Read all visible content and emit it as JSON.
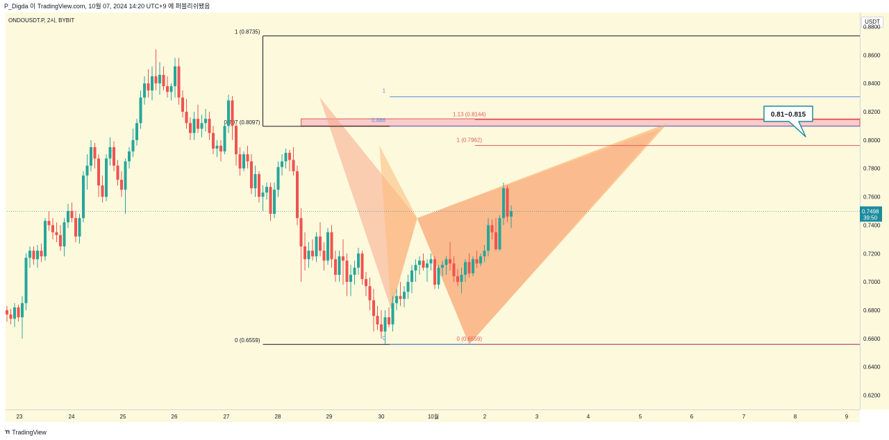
{
  "header": {
    "title": "P_Digda 이 TradingView.com, 10월 07, 2024 14:20 UTC+9 에 퍼블리쉬됐음"
  },
  "symbol": "ONDOUSDT.P, 2시, BYBIT",
  "currency": "USDT",
  "brand": "TradingView",
  "colors": {
    "up": "#26a69a",
    "down": "#ef5350",
    "patternA": "#f7a88a",
    "patternB": "#fdb97a",
    "fibBlack": "#131722",
    "fibBlue": "#5b8ee6",
    "fibRed": "#e35a5a",
    "zoneFill": "#f4a7b9",
    "target": "#1b8c9e",
    "bg": "#fdf9dd"
  },
  "chart_data": {
    "type": "candlestick",
    "ylim": [
      0.61,
      0.89
    ],
    "yticks": [
      "0.8800",
      "0.8600",
      "0.8400",
      "0.8200",
      "0.8000",
      "0.7800",
      "0.7600",
      "0.7400",
      "0.7200",
      "0.7000",
      "0.6800",
      "0.6600",
      "0.6400",
      "0.6200"
    ],
    "xticks": [
      "23",
      "24",
      "25",
      "26",
      "27",
      "28",
      "29",
      "30",
      "10월",
      "2",
      "3",
      "4",
      "5",
      "6",
      "7",
      "8",
      "9"
    ],
    "last_price": "0.7498",
    "last_countdown": "39:50",
    "last_value": 0.7498,
    "candles": [
      [
        0.68,
        0.683,
        0.672,
        0.677
      ],
      [
        0.677,
        0.681,
        0.67,
        0.674
      ],
      [
        0.674,
        0.685,
        0.668,
        0.682
      ],
      [
        0.682,
        0.684,
        0.672,
        0.675
      ],
      [
        0.675,
        0.69,
        0.66,
        0.685
      ],
      [
        0.685,
        0.72,
        0.68,
        0.717
      ],
      [
        0.717,
        0.725,
        0.71,
        0.722
      ],
      [
        0.722,
        0.725,
        0.712,
        0.716
      ],
      [
        0.716,
        0.726,
        0.71,
        0.722
      ],
      [
        0.722,
        0.727,
        0.714,
        0.718
      ],
      [
        0.718,
        0.745,
        0.715,
        0.743
      ],
      [
        0.743,
        0.75,
        0.736,
        0.74
      ],
      [
        0.74,
        0.745,
        0.73,
        0.735
      ],
      [
        0.735,
        0.742,
        0.728,
        0.733
      ],
      [
        0.733,
        0.74,
        0.722,
        0.725
      ],
      [
        0.725,
        0.745,
        0.718,
        0.742
      ],
      [
        0.742,
        0.755,
        0.738,
        0.75
      ],
      [
        0.75,
        0.756,
        0.742,
        0.745
      ],
      [
        0.745,
        0.75,
        0.728,
        0.732
      ],
      [
        0.732,
        0.748,
        0.727,
        0.745
      ],
      [
        0.745,
        0.778,
        0.742,
        0.775
      ],
      [
        0.775,
        0.79,
        0.765,
        0.782
      ],
      [
        0.782,
        0.8,
        0.778,
        0.795
      ],
      [
        0.795,
        0.798,
        0.78,
        0.787
      ],
      [
        0.787,
        0.79,
        0.76,
        0.768
      ],
      [
        0.768,
        0.775,
        0.756,
        0.76
      ],
      [
        0.76,
        0.79,
        0.757,
        0.787
      ],
      [
        0.787,
        0.802,
        0.782,
        0.795
      ],
      [
        0.795,
        0.799,
        0.778,
        0.782
      ],
      [
        0.782,
        0.786,
        0.768,
        0.772
      ],
      [
        0.772,
        0.778,
        0.76,
        0.765
      ],
      [
        0.765,
        0.787,
        0.748,
        0.785
      ],
      [
        0.785,
        0.795,
        0.78,
        0.792
      ],
      [
        0.792,
        0.808,
        0.788,
        0.8
      ],
      [
        0.8,
        0.815,
        0.796,
        0.812
      ],
      [
        0.812,
        0.835,
        0.808,
        0.83
      ],
      [
        0.83,
        0.845,
        0.825,
        0.84
      ],
      [
        0.84,
        0.85,
        0.83,
        0.835
      ],
      [
        0.835,
        0.852,
        0.828,
        0.845
      ],
      [
        0.845,
        0.864,
        0.835,
        0.84
      ],
      [
        0.84,
        0.855,
        0.832,
        0.846
      ],
      [
        0.846,
        0.852,
        0.835,
        0.838
      ],
      [
        0.838,
        0.845,
        0.83,
        0.834
      ],
      [
        0.834,
        0.84,
        0.828,
        0.838
      ],
      [
        0.838,
        0.858,
        0.83,
        0.852
      ],
      [
        0.852,
        0.858,
        0.825,
        0.83
      ],
      [
        0.83,
        0.835,
        0.816,
        0.82
      ],
      [
        0.82,
        0.829,
        0.808,
        0.812
      ],
      [
        0.812,
        0.816,
        0.8,
        0.805
      ],
      [
        0.805,
        0.82,
        0.8,
        0.815
      ],
      [
        0.815,
        0.825,
        0.805,
        0.808
      ],
      [
        0.808,
        0.818,
        0.802,
        0.812
      ],
      [
        0.812,
        0.822,
        0.806,
        0.815
      ],
      [
        0.815,
        0.82,
        0.8,
        0.805
      ],
      [
        0.805,
        0.81,
        0.79,
        0.794
      ],
      [
        0.794,
        0.8,
        0.788,
        0.796
      ],
      [
        0.796,
        0.8,
        0.785,
        0.792
      ],
      [
        0.792,
        0.812,
        0.79,
        0.81
      ],
      [
        0.81,
        0.832,
        0.805,
        0.828
      ],
      [
        0.828,
        0.831,
        0.8,
        0.81
      ],
      [
        0.81,
        0.812,
        0.782,
        0.79
      ],
      [
        0.79,
        0.795,
        0.775,
        0.78
      ],
      [
        0.78,
        0.792,
        0.778,
        0.79
      ],
      [
        0.79,
        0.796,
        0.78,
        0.785
      ],
      [
        0.785,
        0.79,
        0.762,
        0.766
      ],
      [
        0.766,
        0.782,
        0.76,
        0.776
      ],
      [
        0.776,
        0.778,
        0.756,
        0.76
      ],
      [
        0.76,
        0.768,
        0.75,
        0.763
      ],
      [
        0.763,
        0.77,
        0.758,
        0.767
      ],
      [
        0.767,
        0.77,
        0.743,
        0.748
      ],
      [
        0.748,
        0.77,
        0.745,
        0.765
      ],
      [
        0.765,
        0.785,
        0.76,
        0.781
      ],
      [
        0.781,
        0.79,
        0.775,
        0.785
      ],
      [
        0.785,
        0.794,
        0.78,
        0.791
      ],
      [
        0.791,
        0.793,
        0.778,
        0.786
      ],
      [
        0.786,
        0.795,
        0.775,
        0.778
      ],
      [
        0.778,
        0.782,
        0.74,
        0.745
      ],
      [
        0.745,
        0.752,
        0.7,
        0.725
      ],
      [
        0.725,
        0.735,
        0.708,
        0.716
      ],
      [
        0.716,
        0.728,
        0.71,
        0.722
      ],
      [
        0.722,
        0.73,
        0.715,
        0.718
      ],
      [
        0.718,
        0.735,
        0.714,
        0.732
      ],
      [
        0.732,
        0.742,
        0.718,
        0.722
      ],
      [
        0.722,
        0.728,
        0.708,
        0.715
      ],
      [
        0.715,
        0.738,
        0.712,
        0.735
      ],
      [
        0.735,
        0.74,
        0.71,
        0.716
      ],
      [
        0.716,
        0.722,
        0.7,
        0.705
      ],
      [
        0.705,
        0.722,
        0.7,
        0.718
      ],
      [
        0.718,
        0.73,
        0.698,
        0.715
      ],
      [
        0.715,
        0.72,
        0.69,
        0.7
      ],
      [
        0.7,
        0.712,
        0.69,
        0.705
      ],
      [
        0.705,
        0.715,
        0.698,
        0.71
      ],
      [
        0.71,
        0.724,
        0.705,
        0.72
      ],
      [
        0.72,
        0.722,
        0.698,
        0.702
      ],
      [
        0.702,
        0.707,
        0.69,
        0.697
      ],
      [
        0.697,
        0.703,
        0.68,
        0.687
      ],
      [
        0.687,
        0.695,
        0.665,
        0.676
      ],
      [
        0.676,
        0.683,
        0.666,
        0.67
      ],
      [
        0.67,
        0.68,
        0.66,
        0.665
      ],
      [
        0.665,
        0.68,
        0.656,
        0.675
      ],
      [
        0.675,
        0.682,
        0.668,
        0.67
      ],
      [
        0.67,
        0.69,
        0.665,
        0.685
      ],
      [
        0.685,
        0.695,
        0.68,
        0.69
      ],
      [
        0.69,
        0.7,
        0.683,
        0.688
      ],
      [
        0.688,
        0.697,
        0.682,
        0.693
      ],
      [
        0.693,
        0.705,
        0.688,
        0.7
      ],
      [
        0.7,
        0.712,
        0.692,
        0.708
      ],
      [
        0.708,
        0.716,
        0.7,
        0.712
      ],
      [
        0.712,
        0.718,
        0.705,
        0.715
      ],
      [
        0.715,
        0.72,
        0.708,
        0.71
      ],
      [
        0.71,
        0.716,
        0.7,
        0.713
      ],
      [
        0.713,
        0.72,
        0.708,
        0.716
      ],
      [
        0.716,
        0.718,
        0.695,
        0.698
      ],
      [
        0.698,
        0.712,
        0.695,
        0.71
      ],
      [
        0.71,
        0.715,
        0.704,
        0.712
      ],
      [
        0.712,
        0.718,
        0.705,
        0.716
      ],
      [
        0.716,
        0.728,
        0.708,
        0.713
      ],
      [
        0.713,
        0.718,
        0.7,
        0.704
      ],
      [
        0.704,
        0.709,
        0.697,
        0.7
      ],
      [
        0.7,
        0.71,
        0.692,
        0.705
      ],
      [
        0.705,
        0.716,
        0.7,
        0.714
      ],
      [
        0.714,
        0.72,
        0.703,
        0.706
      ],
      [
        0.706,
        0.718,
        0.704,
        0.716
      ],
      [
        0.716,
        0.722,
        0.71,
        0.713
      ],
      [
        0.713,
        0.72,
        0.711,
        0.718
      ],
      [
        0.718,
        0.726,
        0.714,
        0.722
      ],
      [
        0.722,
        0.745,
        0.718,
        0.74
      ],
      [
        0.74,
        0.744,
        0.73,
        0.735
      ],
      [
        0.735,
        0.745,
        0.722,
        0.723
      ],
      [
        0.723,
        0.747,
        0.722,
        0.745
      ],
      [
        0.745,
        0.77,
        0.74,
        0.766
      ],
      [
        0.766,
        0.768,
        0.742,
        0.746
      ],
      [
        0.746,
        0.754,
        0.738,
        0.75
      ]
    ],
    "fib_left": [
      {
        "label": "1 (0.8735)",
        "value": 0.8735
      },
      {
        "label": "0.707 (0.8097)",
        "value": 0.8097
      },
      {
        "label": "0 (0.6559)",
        "value": 0.6559
      }
    ],
    "fib_mid": [
      {
        "label": "1",
        "value": 0.8305
      },
      {
        "label": "0.886",
        "value": 0.8097
      },
      {
        "label": "0",
        "value": 0.6559
      }
    ],
    "fib_right": [
      {
        "label": "1.13 (0.8144)",
        "value": 0.8144
      },
      {
        "label": "1 (0.7962)",
        "value": 0.7962
      },
      {
        "label": "0 (0.6559)",
        "value": 0.6559
      }
    ],
    "pattern_points": [
      {
        "date_index": 81.8,
        "value": 0.8305
      },
      {
        "date_index": 100.6,
        "value": 0.6807
      },
      {
        "date_index": 107.4,
        "value": 0.7449
      },
      {
        "date_index": 121.0,
        "value": 0.6559
      },
      {
        "date_index": 173.0,
        "value": 0.812
      }
    ],
    "target_zone_callout": "0.81~0.815",
    "target_zone": [
      0.81,
      0.815
    ]
  }
}
